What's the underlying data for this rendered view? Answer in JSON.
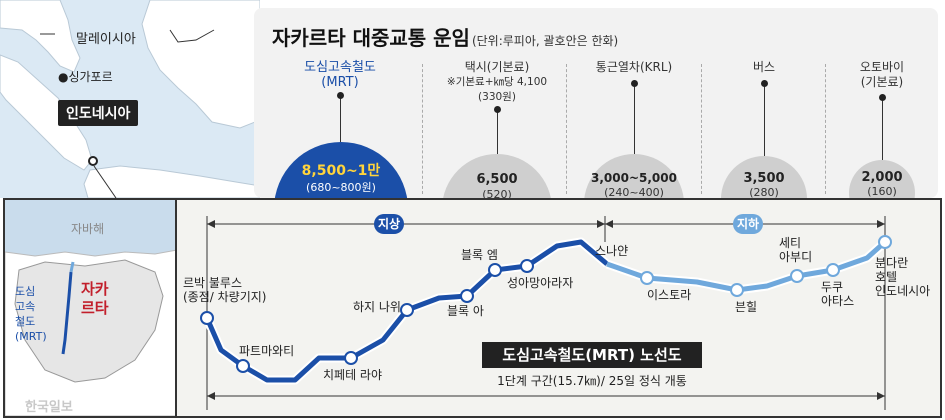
{
  "map": {
    "malaysia": "말레이시아",
    "singapore": "●싱가포르",
    "indonesia": "인도네시아"
  },
  "fares": {
    "title": "자카르타 대중교통 운임",
    "unit": "(단위:루피아, 괄호안은 한화)",
    "modes": [
      {
        "name": "도심고속철도",
        "sub": "(MRT)",
        "note": "",
        "fare": "8,500~1만",
        "won": "(680~800원)",
        "fare_value": 9250
      },
      {
        "name": "택시(기본료)",
        "sub": "※기본료+㎞당 4,100",
        "note": "(330원)",
        "fare": "6,500",
        "won": "(520)",
        "fare_value": 6500
      },
      {
        "name": "통근열차(KRL)",
        "sub": "",
        "note": "",
        "fare": "3,000~5,000",
        "won": "(240~400)",
        "fare_value": 4000
      },
      {
        "name": "버스",
        "sub": "",
        "note": "",
        "fare": "3,500",
        "won": "(280)",
        "fare_value": 3500
      },
      {
        "name": "오토바이",
        "sub": "(기본료)",
        "note": "",
        "fare": "2,000",
        "won": "(160)",
        "fare_value": 2000
      }
    ]
  },
  "inset": {
    "sea": "자바해",
    "mrt_label": "도심\n고속\n철도\n(MRT)",
    "city": "자카\n르타"
  },
  "route": {
    "title": "도심고속철도(MRT) 노선도",
    "note": "1단계 구간(15.7㎞)/ 25일 정식 개통",
    "segments": {
      "above": "지상",
      "below": "지하"
    },
    "stations": [
      {
        "name": "르박 불루스\n(종점/ 차량기지)"
      },
      {
        "name": "파트마와티"
      },
      {
        "name": "치페테 라야"
      },
      {
        "name": "하지 나위"
      },
      {
        "name": "블록 아"
      },
      {
        "name": "블록 엠"
      },
      {
        "name": "성아망아라자"
      },
      {
        "name": "스나얀"
      },
      {
        "name": "이스토라"
      },
      {
        "name": "븐힐"
      },
      {
        "name": "세티\n아부디"
      },
      {
        "name": "두쿠\n아타스"
      },
      {
        "name": "분다란\n호텔\n인도네시아"
      }
    ]
  },
  "credit": "한국일보",
  "colors": {
    "mrt_blue": "#1b4fa8",
    "underground": "#6fa8dc",
    "mrt_bubble": "#1b4fa8",
    "other_bubble": "#cfcfcf"
  }
}
